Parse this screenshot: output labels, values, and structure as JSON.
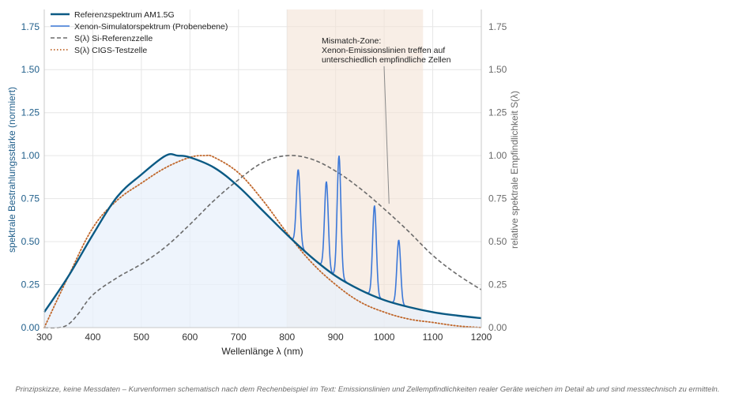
{
  "chart_data": {
    "type": "line",
    "xlabel": "Wellenlänge λ (nm)",
    "ylabel_left": "spektrale Bestrahlungsstärke (normiert)",
    "ylabel_right": "relative spektrale Empfindlichkeit S(λ)",
    "xlim": [
      300,
      1200
    ],
    "ylim_left": [
      0,
      1.85
    ],
    "ylim_right": [
      0,
      1.85
    ],
    "x_ticks": [
      "300",
      "400",
      "500",
      "600",
      "700",
      "800",
      "900",
      "1000",
      "1100",
      "1200"
    ],
    "y_ticks_left": [
      "0.00",
      "0.25",
      "0.50",
      "0.75",
      "1.00",
      "1.25",
      "1.50",
      "1.75"
    ],
    "y_ticks_right": [
      "0.00",
      "0.25",
      "0.50",
      "0.75",
      "1.00",
      "1.25",
      "1.50",
      "1.75"
    ],
    "grid": true,
    "legend_position": "top-left",
    "shaded_region": {
      "x": [
        800,
        1080
      ],
      "color": "#f3e3d6"
    },
    "series": [
      {
        "name": "Referenzspektrum AM1.5G",
        "color": "#0b5a84",
        "style": "solid",
        "fill": "#e8f0fb",
        "x": [
          300,
          350,
          400,
          450,
          500,
          550,
          575,
          600,
          650,
          700,
          750,
          800,
          850,
          900,
          950,
          1000,
          1050,
          1100,
          1150,
          1200
        ],
        "y": [
          0.09,
          0.3,
          0.54,
          0.76,
          0.89,
          1.0,
          1.0,
          0.99,
          0.93,
          0.82,
          0.68,
          0.54,
          0.41,
          0.3,
          0.22,
          0.16,
          0.12,
          0.09,
          0.07,
          0.055
        ]
      },
      {
        "name": "Xenon-Simulatorspektrum (Probenebene)",
        "color": "#3c78d8",
        "style": "solid",
        "peaks": [
          {
            "x": 823,
            "y": 0.92
          },
          {
            "x": 881,
            "y": 0.85
          },
          {
            "x": 907,
            "y": 1.0
          },
          {
            "x": 980,
            "y": 0.71
          },
          {
            "x": 1030,
            "y": 0.51
          }
        ]
      },
      {
        "name": "S(λ) Si-Referenzzelle",
        "color": "#6b6b6b",
        "style": "dashed",
        "x": [
          300,
          330,
          350,
          370,
          400,
          450,
          500,
          550,
          600,
          650,
          700,
          750,
          800,
          850,
          900,
          950,
          1000,
          1050,
          1100,
          1150,
          1200
        ],
        "y": [
          0.0,
          0.0,
          0.02,
          0.08,
          0.19,
          0.29,
          0.37,
          0.47,
          0.6,
          0.74,
          0.86,
          0.96,
          1.0,
          0.98,
          0.91,
          0.81,
          0.69,
          0.56,
          0.42,
          0.31,
          0.22
        ]
      },
      {
        "name": "S(λ) CIGS-Testzelle",
        "color": "#c0672b",
        "style": "dotted",
        "x": [
          300,
          350,
          400,
          450,
          500,
          550,
          600,
          630,
          650,
          700,
          750,
          800,
          850,
          900,
          950,
          1000,
          1050,
          1100,
          1150,
          1200
        ],
        "y": [
          0.0,
          0.3,
          0.58,
          0.74,
          0.84,
          0.93,
          0.99,
          1.0,
          0.99,
          0.9,
          0.74,
          0.55,
          0.38,
          0.25,
          0.15,
          0.09,
          0.05,
          0.03,
          0.01,
          0.0
        ]
      }
    ],
    "annotation": {
      "lines": [
        "Mismatch-Zone:",
        "Xenon-Emissionslinien treffen auf",
        "unterschiedlich empfindliche Zellen"
      ],
      "arrow_target": {
        "x": 1010,
        "y": 0.72
      }
    }
  },
  "caption": "Prinzipskizze, keine Messdaten – Kurvenformen schematisch nach dem Rechenbeispiel im Text: Emissionslinien und Zellempfindlichkeiten realer Geräte weichen im Detail ab und sind messtechnisch zu ermitteln."
}
